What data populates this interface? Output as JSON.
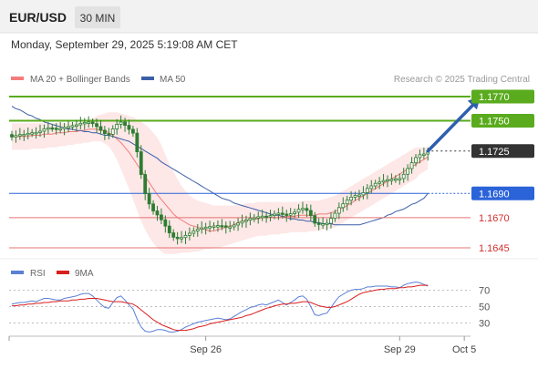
{
  "header": {
    "symbol": "EUR/USD",
    "timeframe": "30 MIN",
    "datetime": "Monday, September 29, 2025 5:19:08 AM CET",
    "credit": "Research © 2025 Trading Central"
  },
  "colors": {
    "candle": "#2e7d32",
    "bollinger": "#f47c7c",
    "ma50": "#3b5ea8",
    "resistance": "#5aab1e",
    "pivot": "#2b63d9",
    "support": "#e57373",
    "last": "#333333",
    "arrow": "#2f5fae",
    "rsi": "#5b7fd4",
    "rsi_ma": "#d91e1e"
  },
  "chart_data": [
    {
      "type": "candlestick",
      "legend": [
        {
          "label": "MA 20 + Bollinger Bands",
          "color": "#f47c7c"
        },
        {
          "label": "MA 50",
          "color": "#3b5ea8"
        }
      ],
      "x_ticks": [
        {
          "label": "Sep 26",
          "index": 48
        },
        {
          "label": "Sep 29",
          "index": 96
        },
        {
          "label": "Oct 5",
          "index": 112
        }
      ],
      "ylim": [
        1.1633,
        1.1776
      ],
      "levels": [
        {
          "value": 1.177,
          "label": "1.1770",
          "type": "resistance"
        },
        {
          "value": 1.175,
          "label": "1.1750",
          "type": "resistance"
        },
        {
          "value": 1.1725,
          "label": "1.1725",
          "type": "last"
        },
        {
          "value": 1.169,
          "label": "1.1690",
          "type": "pivot"
        },
        {
          "value": 1.167,
          "label": "1.1670",
          "type": "support"
        },
        {
          "value": 1.1645,
          "label": "1.1645",
          "type": "support"
        }
      ],
      "arrow": {
        "from_index": 103,
        "from_value": 1.1725,
        "to_index": 116,
        "to_value": 1.177
      },
      "close": [
        1.17366,
        1.17378,
        1.17386,
        1.17388,
        1.17396,
        1.17401,
        1.17404,
        1.17414,
        1.17433,
        1.17442,
        1.17439,
        1.17433,
        1.17435,
        1.17446,
        1.17452,
        1.1746,
        1.17466,
        1.17479,
        1.17486,
        1.17489,
        1.17476,
        1.17452,
        1.17422,
        1.17394,
        1.17388,
        1.17433,
        1.17471,
        1.17489,
        1.17462,
        1.17429,
        1.17398,
        1.17244,
        1.17056,
        1.16898,
        1.16813,
        1.16755,
        1.16722,
        1.16682,
        1.1663,
        1.16574,
        1.16538,
        1.16526,
        1.16535,
        1.16553,
        1.16571,
        1.1659,
        1.16604,
        1.16615,
        1.16621,
        1.16626,
        1.16631,
        1.16634,
        1.16632,
        1.16622,
        1.16624,
        1.16639,
        1.16655,
        1.1667,
        1.16679,
        1.16693,
        1.16698,
        1.16707,
        1.16712,
        1.16711,
        1.16717,
        1.16729,
        1.16737,
        1.16729,
        1.16719,
        1.16732,
        1.16745,
        1.16768,
        1.16776,
        1.16759,
        1.16716,
        1.16654,
        1.16644,
        1.16649,
        1.16653,
        1.16694,
        1.16736,
        1.16783,
        1.16814,
        1.16844,
        1.16869,
        1.16884,
        1.16887,
        1.16906,
        1.16941,
        1.16962,
        1.16983,
        1.16994,
        1.17006,
        1.17013,
        1.17017,
        1.1702,
        1.17023,
        1.17058,
        1.17105,
        1.17153,
        1.17196,
        1.17219,
        1.17225,
        1.17242
      ],
      "ma20": [
        1.1737,
        1.1737,
        1.1737,
        1.1737,
        1.1737,
        1.1738,
        1.1738,
        1.1738,
        1.1739,
        1.1739,
        1.1739,
        1.174,
        1.174,
        1.174,
        1.1741,
        1.1741,
        1.1741,
        1.1742,
        1.1742,
        1.1743,
        1.1743,
        1.1743,
        1.1742,
        1.1742,
        1.174,
        1.1738,
        1.1735,
        1.1732,
        1.1728,
        1.1724,
        1.1719,
        1.1714,
        1.1709,
        1.1704,
        1.1699,
        1.1694,
        1.1689,
        1.1685,
        1.1681,
        1.1677,
        1.1673,
        1.167,
        1.1668,
        1.1666,
        1.1664,
        1.1663,
        1.1662,
        1.1661,
        1.166,
        1.1659,
        1.1659,
        1.166,
        1.1661,
        1.1662,
        1.1663,
        1.1664,
        1.1666,
        1.1667,
        1.1668,
        1.1668,
        1.1669,
        1.1669,
        1.167,
        1.167,
        1.167,
        1.167,
        1.167,
        1.1671,
        1.1671,
        1.1671,
        1.1671,
        1.1672,
        1.1672,
        1.1672,
        1.1672,
        1.1672,
        1.1673,
        1.1673,
        1.1673,
        1.1674,
        1.1675,
        1.1677,
        1.1678,
        1.168,
        1.1682,
        1.1684,
        1.1686,
        1.1688,
        1.169,
        1.1692,
        1.1694,
        1.1696,
        1.1698,
        1.17,
        1.1702,
        1.1704,
        1.1706,
        1.1708,
        1.171,
        1.1712,
        1.1714,
        1.1716,
        1.1718,
        1.172
      ],
      "bb_upper": [
        1.1748,
        1.1748,
        1.1748,
        1.1748,
        1.1748,
        1.1748,
        1.1748,
        1.1748,
        1.1748,
        1.1748,
        1.1748,
        1.1748,
        1.1748,
        1.1748,
        1.1748,
        1.1748,
        1.1748,
        1.1748,
        1.1748,
        1.175,
        1.1752,
        1.1754,
        1.1755,
        1.1756,
        1.1757,
        1.1757,
        1.1757,
        1.1756,
        1.1755,
        1.1754,
        1.1753,
        1.1751,
        1.1749,
        1.1747,
        1.1744,
        1.174,
        1.1736,
        1.173,
        1.1722,
        1.1714,
        1.1708,
        1.1702,
        1.1696,
        1.1692,
        1.1688,
        1.1686,
        1.1684,
        1.1683,
        1.1682,
        1.1681,
        1.168,
        1.168,
        1.168,
        1.168,
        1.168,
        1.168,
        1.1681,
        1.1681,
        1.1682,
        1.1682,
        1.1682,
        1.1683,
        1.1683,
        1.1683,
        1.1683,
        1.1683,
        1.1683,
        1.1683,
        1.1683,
        1.1683,
        1.1683,
        1.1683,
        1.1684,
        1.1684,
        1.1684,
        1.1684,
        1.1684,
        1.1685,
        1.1686,
        1.1687,
        1.1688,
        1.169,
        1.1692,
        1.1694,
        1.1696,
        1.1698,
        1.17,
        1.1702,
        1.1704,
        1.1706,
        1.1708,
        1.171,
        1.1712,
        1.1714,
        1.1716,
        1.1718,
        1.172,
        1.1722,
        1.1724,
        1.1726,
        1.1728,
        1.1728,
        1.1728,
        1.1728
      ],
      "bb_lower": [
        1.1726,
        1.1726,
        1.1726,
        1.1726,
        1.1726,
        1.1727,
        1.1727,
        1.1727,
        1.1727,
        1.1728,
        1.1728,
        1.1728,
        1.1729,
        1.1729,
        1.173,
        1.173,
        1.1731,
        1.1731,
        1.1732,
        1.1732,
        1.1733,
        1.1733,
        1.1733,
        1.1731,
        1.1729,
        1.1724,
        1.1718,
        1.171,
        1.1702,
        1.1694,
        1.1685,
        1.1676,
        1.1667,
        1.166,
        1.1654,
        1.1649,
        1.1645,
        1.1642,
        1.164,
        1.164,
        1.164,
        1.164,
        1.1641,
        1.1641,
        1.1641,
        1.1642,
        1.1642,
        1.1643,
        1.1644,
        1.1644,
        1.1645,
        1.1645,
        1.1646,
        1.1647,
        1.1648,
        1.1649,
        1.165,
        1.1651,
        1.1652,
        1.1653,
        1.1654,
        1.1655,
        1.1655,
        1.1655,
        1.1656,
        1.1656,
        1.1656,
        1.1657,
        1.1657,
        1.1658,
        1.1658,
        1.1658,
        1.1658,
        1.1658,
        1.1659,
        1.1659,
        1.1659,
        1.166,
        1.166,
        1.1661,
        1.1662,
        1.1664,
        1.1666,
        1.1668,
        1.167,
        1.1672,
        1.1674,
        1.1676,
        1.1678,
        1.168,
        1.1682,
        1.1684,
        1.1686,
        1.1688,
        1.169,
        1.1692,
        1.1694,
        1.1696,
        1.1698,
        1.17,
        1.1702,
        1.1706,
        1.1708,
        1.171
      ],
      "ma50": [
        1.1762,
        1.176,
        1.1759,
        1.1757,
        1.1755,
        1.1754,
        1.1752,
        1.1751,
        1.1749,
        1.1748,
        1.1747,
        1.1746,
        1.1745,
        1.1744,
        1.1743,
        1.1743,
        1.1742,
        1.1742,
        1.1741,
        1.1741,
        1.174,
        1.174,
        1.1739,
        1.1738,
        1.1738,
        1.1737,
        1.1736,
        1.1735,
        1.1734,
        1.1733,
        1.1731,
        1.1729,
        1.1727,
        1.1725,
        1.1723,
        1.1721,
        1.1719,
        1.1716,
        1.1714,
        1.1712,
        1.171,
        1.1708,
        1.1706,
        1.1704,
        1.1702,
        1.17,
        1.1698,
        1.1696,
        1.1694,
        1.1692,
        1.169,
        1.1688,
        1.1686,
        1.1685,
        1.1684,
        1.1682,
        1.1681,
        1.168,
        1.1679,
        1.1678,
        1.1677,
        1.1676,
        1.1675,
        1.1674,
        1.1673,
        1.1672,
        1.1672,
        1.1671,
        1.167,
        1.1669,
        1.1669,
        1.1668,
        1.1668,
        1.1667,
        1.1667,
        1.1666,
        1.1666,
        1.1665,
        1.1665,
        1.1665,
        1.1664,
        1.1664,
        1.1664,
        1.1664,
        1.1664,
        1.1664,
        1.1664,
        1.1665,
        1.1666,
        1.1667,
        1.1668,
        1.1669,
        1.167,
        1.1672,
        1.1673,
        1.1675,
        1.1676,
        1.1677,
        1.1679,
        1.1681,
        1.1682,
        1.1684,
        1.1686,
        1.169
      ]
    },
    {
      "type": "line",
      "legend": [
        {
          "label": "RSI",
          "color": "#5b7fd4"
        },
        {
          "label": "9MA",
          "color": "#d91e1e"
        }
      ],
      "ylim": [
        15,
        85
      ],
      "y_ticks": [
        {
          "value": 70,
          "label": "70"
        },
        {
          "value": 50,
          "label": "50"
        },
        {
          "value": 30,
          "label": "30"
        }
      ],
      "series": [
        {
          "name": "RSI",
          "values": [
            53,
            54,
            55,
            55,
            56,
            57,
            56,
            58,
            60,
            60,
            59,
            58,
            58,
            60,
            61,
            62,
            63,
            65,
            66,
            66,
            63,
            58,
            53,
            49,
            48,
            55,
            61,
            63,
            58,
            52,
            47,
            35,
            25,
            20,
            19,
            20,
            22,
            22,
            21,
            19,
            19,
            20,
            22,
            25,
            27,
            29,
            31,
            32,
            33,
            34,
            35,
            36,
            35,
            34,
            35,
            38,
            41,
            44,
            46,
            49,
            50,
            52,
            53,
            52,
            54,
            56,
            58,
            55,
            52,
            55,
            58,
            62,
            63,
            59,
            50,
            40,
            39,
            41,
            42,
            49,
            56,
            62,
            65,
            68,
            70,
            71,
            71,
            72,
            74,
            74,
            75,
            75,
            75,
            75,
            74,
            74,
            73,
            76,
            78,
            79,
            80,
            79,
            77,
            75
          ]
        },
        {
          "name": "9MA",
          "values": [
            51,
            51,
            52,
            52,
            53,
            53,
            54,
            54,
            55,
            55,
            56,
            56,
            57,
            57,
            57,
            58,
            58,
            59,
            59,
            60,
            60,
            60,
            59,
            58,
            57,
            56,
            56,
            56,
            55,
            54,
            53,
            50,
            46,
            42,
            38,
            34,
            31,
            28,
            26,
            24,
            22,
            21,
            21,
            21,
            22,
            23,
            25,
            26,
            27,
            29,
            30,
            31,
            32,
            33,
            34,
            35,
            36,
            37,
            39,
            40,
            42,
            44,
            46,
            48,
            49,
            51,
            52,
            53,
            53,
            54,
            54,
            55,
            56,
            56,
            55,
            53,
            51,
            50,
            49,
            49,
            50,
            52,
            54,
            56,
            59,
            62,
            65,
            67,
            68,
            69,
            70,
            71,
            71,
            72,
            72,
            72,
            73,
            73,
            74,
            74,
            75,
            76,
            76,
            76
          ]
        }
      ]
    }
  ]
}
